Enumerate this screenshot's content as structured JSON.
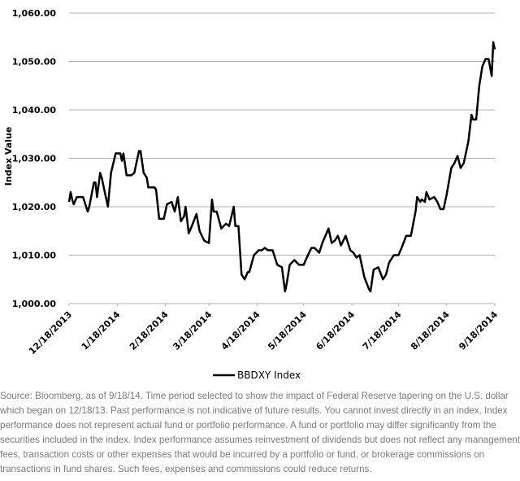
{
  "chart_data": {
    "type": "line",
    "y_label": "Index Value",
    "x": [
      "2013-12-18",
      "2013-12-19",
      "2013-12-20",
      "2013-12-21",
      "2013-12-23",
      "2013-12-27",
      "2013-12-30",
      "2013-12-31",
      "2014-01-03",
      "2014-01-04",
      "2014-01-05",
      "2014-01-07",
      "2014-01-08",
      "2014-01-12",
      "2014-01-14",
      "2014-01-17",
      "2014-01-20",
      "2014-01-21",
      "2014-01-22",
      "2014-01-24",
      "2014-01-27",
      "2014-01-29",
      "2014-02-01",
      "2014-02-02",
      "2014-02-04",
      "2014-02-06",
      "2014-02-07",
      "2014-02-11",
      "2014-02-12",
      "2014-02-14",
      "2014-02-17",
      "2014-02-19",
      "2014-02-22",
      "2014-02-24",
      "2014-02-26",
      "2014-02-28",
      "2014-03-02",
      "2014-03-03",
      "2014-03-05",
      "2014-03-07",
      "2014-03-10",
      "2014-03-12",
      "2014-03-15",
      "2014-03-18",
      "2014-03-20",
      "2014-03-21",
      "2014-03-23",
      "2014-03-26",
      "2014-03-29",
      "2014-03-31",
      "2014-04-03",
      "2014-04-04",
      "2014-04-06",
      "2014-04-08",
      "2014-04-10",
      "2014-04-12",
      "2014-04-13",
      "2014-04-16",
      "2014-04-19",
      "2014-04-21",
      "2014-04-23",
      "2014-04-25",
      "2014-04-28",
      "2014-05-01",
      "2014-05-04",
      "2014-05-06",
      "2014-05-07",
      "2014-05-09",
      "2014-05-12",
      "2014-05-15",
      "2014-05-18",
      "2014-05-20",
      "2014-05-23",
      "2014-05-25",
      "2014-05-28",
      "2014-05-30",
      "2014-06-01",
      "2014-06-03",
      "2014-06-05",
      "2014-06-07",
      "2014-06-09",
      "2014-06-11",
      "2014-06-14",
      "2014-06-17",
      "2014-06-19",
      "2014-06-21",
      "2014-06-23",
      "2014-06-26",
      "2014-06-29",
      "2014-06-30",
      "2014-07-02",
      "2014-07-05",
      "2014-07-08",
      "2014-07-10",
      "2014-07-12",
      "2014-07-15",
      "2014-07-18",
      "2014-07-20",
      "2014-07-23",
      "2014-07-26",
      "2014-07-29",
      "2014-07-30",
      "2014-08-01",
      "2014-08-02",
      "2014-08-04",
      "2014-08-05",
      "2014-08-07",
      "2014-08-10",
      "2014-08-12",
      "2014-08-14",
      "2014-08-16",
      "2014-08-18",
      "2014-08-21",
      "2014-08-23",
      "2014-08-25",
      "2014-08-27",
      "2014-08-29",
      "2014-09-01",
      "2014-09-03",
      "2014-09-04",
      "2014-09-06",
      "2014-09-08",
      "2014-09-10",
      "2014-09-12",
      "2014-09-14",
      "2014-09-16",
      "2014-09-17",
      "2014-09-18"
    ],
    "series": [
      {
        "name": "BBDXY Index",
        "color": "#000000",
        "values": [
          1021,
          1023,
          1021.5,
          1020.5,
          1022,
          1022,
          1019,
          1020,
          1025,
          1025,
          1022,
          1027,
          1026,
          1020,
          1027,
          1031,
          1031,
          1029.5,
          1031,
          1026.5,
          1026.5,
          1027,
          1031.5,
          1031.5,
          1027,
          1026,
          1024,
          1024,
          1023.5,
          1017.5,
          1017.5,
          1020.5,
          1021,
          1019,
          1022,
          1017,
          1018,
          1020,
          1014.5,
          1016,
          1018.5,
          1015,
          1013,
          1012.5,
          1021.5,
          1019,
          1019,
          1015.5,
          1016.5,
          1016,
          1020,
          1016,
          1016,
          1006,
          1005,
          1006.5,
          1006.5,
          1010,
          1011,
          1011,
          1011.5,
          1011,
          1011,
          1008,
          1007.5,
          1002.5,
          1004,
          1008,
          1009,
          1008,
          1008,
          1009.5,
          1011.5,
          1011.5,
          1010.5,
          1012.5,
          1014,
          1015.5,
          1012.5,
          1013,
          1014,
          1012,
          1014,
          1011,
          1010.5,
          1009.5,
          1010,
          1005.5,
          1003,
          1002.5,
          1007,
          1007.5,
          1005,
          1006,
          1008.5,
          1010,
          1010,
          1011.5,
          1014,
          1014,
          1019,
          1022,
          1021,
          1021.5,
          1021,
          1023,
          1021.5,
          1022,
          1021,
          1019.5,
          1019.5,
          1022.5,
          1028,
          1029,
          1030.5,
          1028,
          1029,
          1033.5,
          1039,
          1038,
          1038,
          1045,
          1049,
          1050.5,
          1050.5,
          1047,
          1054,
          1052.5
        ]
      }
    ],
    "xlim": [
      "2013-12-18",
      "2014-09-18"
    ],
    "xticks": [
      {
        "value": "2013-12-18",
        "label": "12/18/2013"
      },
      {
        "value": "2014-01-18",
        "label": "1/18/2014"
      },
      {
        "value": "2014-02-18",
        "label": "2/18/2014"
      },
      {
        "value": "2014-03-18",
        "label": "3/18/2014"
      },
      {
        "value": "2014-04-18",
        "label": "4/18/2014"
      },
      {
        "value": "2014-05-18",
        "label": "5/18/2014"
      },
      {
        "value": "2014-06-18",
        "label": "6/18/2014"
      },
      {
        "value": "2014-07-18",
        "label": "7/18/2014"
      },
      {
        "value": "2014-08-18",
        "label": "8/18/2014"
      },
      {
        "value": "2014-09-18",
        "label": "9/18/2014"
      }
    ],
    "ylim": [
      1000,
      1060
    ],
    "yticks": [
      {
        "value": 1000,
        "label": "1,000.00"
      },
      {
        "value": 1010,
        "label": "1,010.00"
      },
      {
        "value": 1020,
        "label": "1,020.00"
      },
      {
        "value": 1030,
        "label": "1,030.00"
      },
      {
        "value": 1040,
        "label": "1,040.00"
      },
      {
        "value": 1050,
        "label": "1,050.00"
      },
      {
        "value": 1060,
        "label": "1,060.00"
      }
    ],
    "grid": true,
    "legend": "bottom",
    "source_note": "Source: Bloomberg, as of 9/18/14. Time period selected to show the impact of Federal Reserve tapering on the U.S. dollar which began on 12/18/13. Past performance is not indicative of future results. You cannot invest directly in an index. Index performance does not represent actual fund or portfolio performance. A fund or portfolio may differ significantly from the securities included in the index. Index performance assumes reinvestment of dividends but does not reflect any management fees, transaction costs or other expenses that would be incurred by a portfolio or fund, or brokerage commissions on transactions in fund shares. Such fees, expenses and commissions could reduce returns."
  }
}
